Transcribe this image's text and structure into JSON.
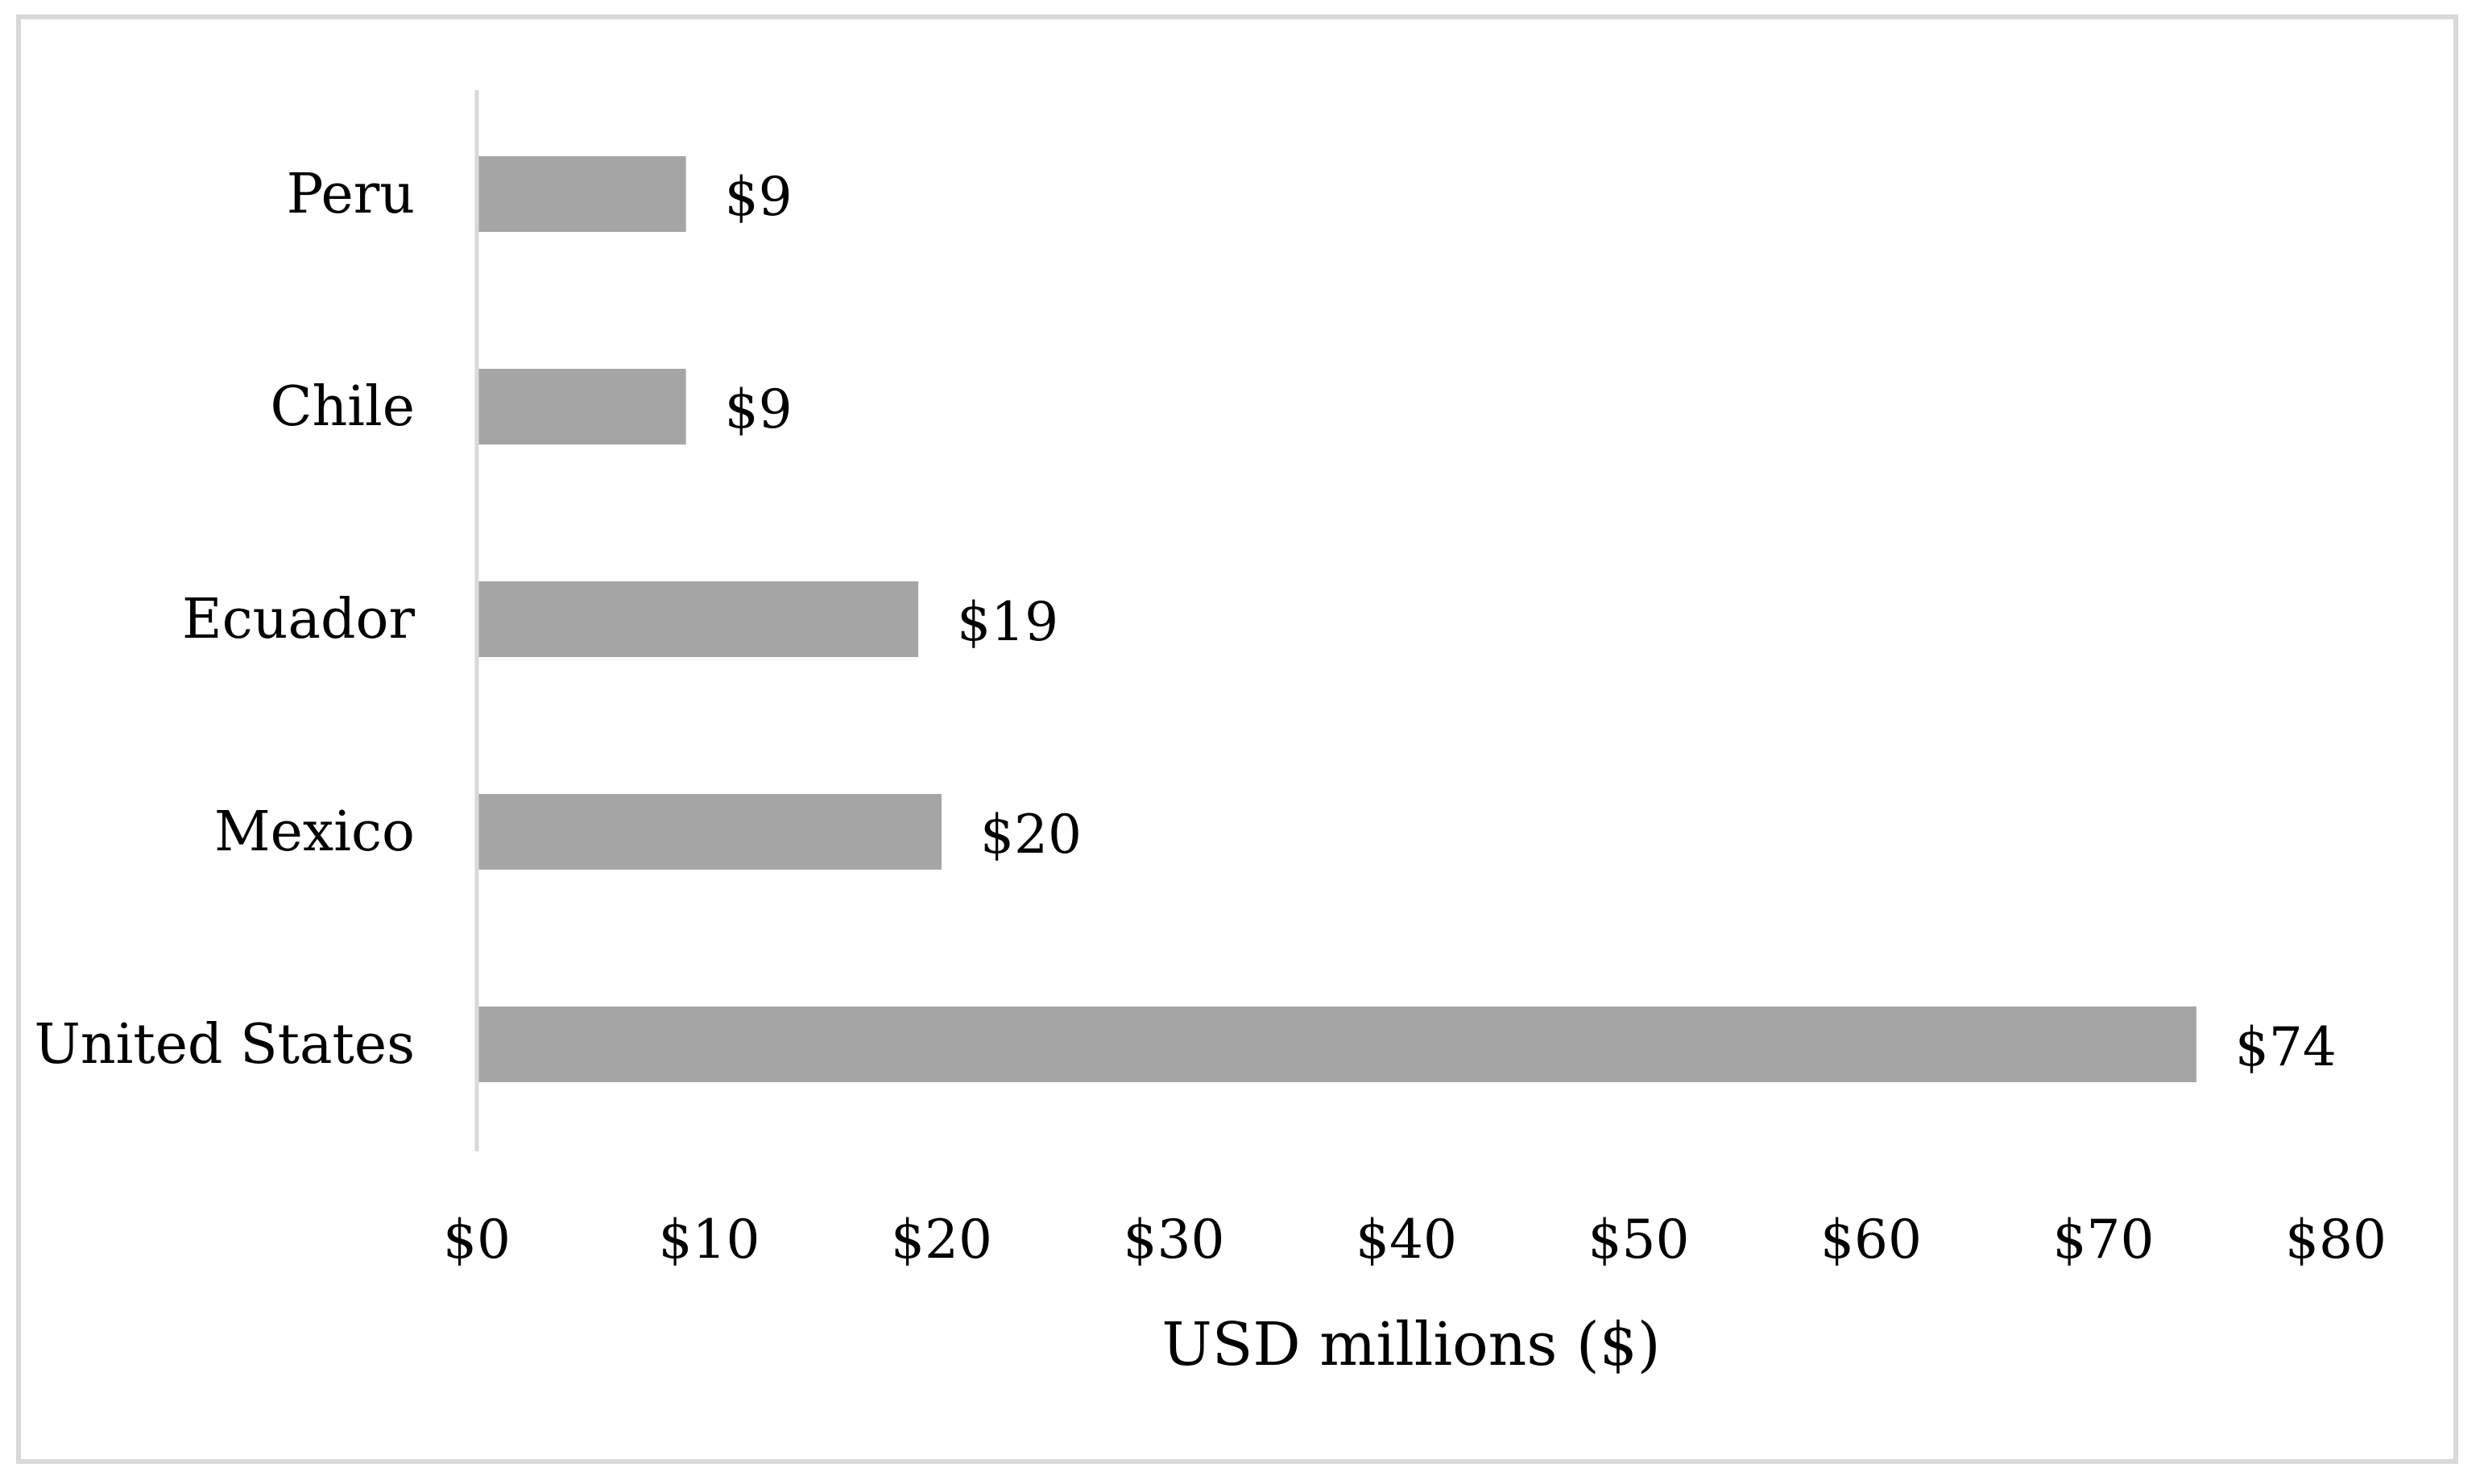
{
  "chart_data": {
    "type": "bar",
    "orientation": "horizontal",
    "categories": [
      "Peru",
      "Chile",
      "Ecuador",
      "Mexico",
      "United States"
    ],
    "values": [
      9,
      9,
      19,
      20,
      74
    ],
    "value_labels": [
      "$9",
      "$9",
      "$19",
      "$20",
      "$74"
    ],
    "xlabel": "USD millions ($)",
    "ylabel": "",
    "title": "",
    "xlim": [
      0,
      80
    ],
    "x_ticks": [
      0,
      10,
      20,
      30,
      40,
      50,
      60,
      70,
      80
    ],
    "x_tick_labels": [
      "$0",
      "$10",
      "$20",
      "$30",
      "$40",
      "$50",
      "$60",
      "$70",
      "$80"
    ],
    "grid": false,
    "legend": "none",
    "bar_color": "#a5a5a5",
    "axis_color": "#d9d9d9"
  }
}
